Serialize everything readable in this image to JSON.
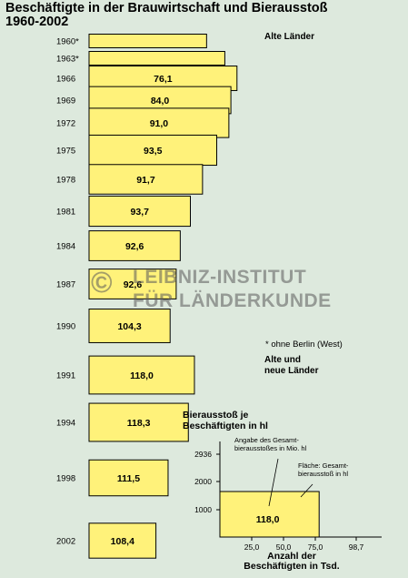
{
  "title": "Beschäftigte in der Brauwirtschaft und Bierausstoß\n1960-2002",
  "chart_data": {
    "type": "bar",
    "groups": [
      {
        "label": "Alte Länder",
        "from_index": 0,
        "to_index": 10
      },
      {
        "label": "Alte und\nneue Länder",
        "from_index": 11,
        "to_index": 15
      }
    ],
    "categories": [
      "1960*",
      "1963*",
      "1966",
      "1969",
      "1972",
      "1975",
      "1978",
      "1981",
      "1984",
      "1987",
      "1990",
      "1991",
      "1994",
      "1998",
      "2002"
    ],
    "employees_thousands": [
      58,
      67,
      73,
      70,
      69,
      63,
      56,
      50,
      45,
      43,
      40,
      52,
      49,
      39,
      33
    ],
    "output_per_employee_hl": [
      null,
      null,
      76.1,
      84.0,
      91.0,
      93.5,
      91.7,
      93.7,
      92.6,
      92.6,
      104.3,
      118.0,
      118.3,
      111.5,
      108.4
    ],
    "value_labels": [
      "",
      "",
      "76,1",
      "84,0",
      "91,0",
      "93,5",
      "91,7",
      "93,7",
      "92,6",
      "92,6",
      "104,3",
      "118,0",
      "118,3",
      "111,5",
      "108,4"
    ],
    "footnote": "* ohne Berlin (West)",
    "color": "#fff27a",
    "legend": {
      "title": "Bierausstoß je\nBeschäftigten in hl",
      "y_ticks": [
        "2936",
        "2000",
        "1000"
      ],
      "x_ticks": [
        "25,0",
        "50,0",
        "75,0",
        "98,7"
      ],
      "x_title": "Anzahl der\nBeschäftigten in Tsd.",
      "example_label": "118,0",
      "example_employees_thousands": 52,
      "example_output_per_employee_hl": 118.0,
      "annotation_value": "Angabe des Gesamt-\nbierausstoßes in Mio. hl",
      "annotation_area": "Fläche: Gesamt-\nbierausstoß in hl"
    }
  },
  "watermark": {
    "line1": "LEIBNIZ-INSTITUT",
    "line2": "FÜR LÄNDERKUNDE",
    "symbol": "©"
  }
}
